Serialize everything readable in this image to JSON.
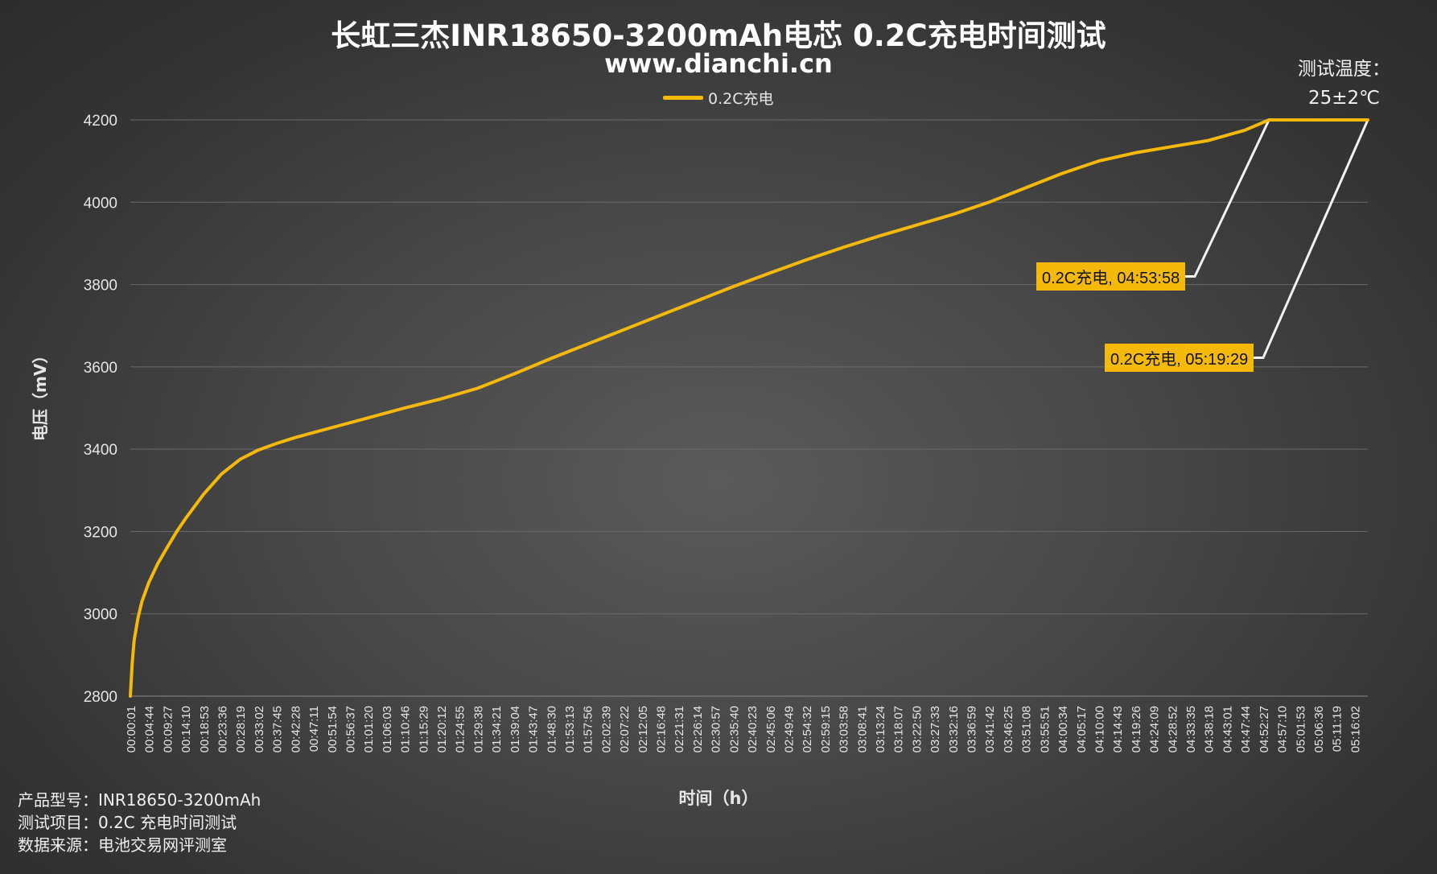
{
  "page": {
    "title": "长虹三杰INR18650-3200mAh电芯 0.2C充电时间测试",
    "subtitle": "www.dianchi.cn",
    "temperature_label": "测试温度：",
    "temperature_value": "25±2℃",
    "footer": {
      "model": "产品型号：INR18650-3200mAh",
      "test_item": "测试项目：0.2C 充电时间测试",
      "source": "数据来源：电池交易网评测室"
    }
  },
  "chart_data": {
    "type": "line",
    "title": "长虹三杰INR18650-3200mAh电芯 0.2C充电时间测试",
    "subtitle": "www.dianchi.cn",
    "xlabel": "时间（h）",
    "ylabel": "电压（mV）",
    "ylim": [
      2800,
      4200
    ],
    "yticks": [
      2800,
      3000,
      3200,
      3400,
      3600,
      3800,
      4000,
      4200
    ],
    "grid": true,
    "legend_position": "top-center",
    "series_color": "#f5b90a",
    "xtick_labels": [
      "00:00:01",
      "00:04:44",
      "00:09:27",
      "00:14:10",
      "00:18:53",
      "00:23:36",
      "00:28:19",
      "00:33:02",
      "00:37:45",
      "00:42:28",
      "00:47:11",
      "00:51:54",
      "00:56:37",
      "01:01:20",
      "01:06:03",
      "01:10:46",
      "01:15:29",
      "01:20:12",
      "01:24:55",
      "01:29:38",
      "01:34:21",
      "01:39:04",
      "01:43:47",
      "01:48:30",
      "01:53:13",
      "01:57:56",
      "02:02:39",
      "02:07:22",
      "02:12:05",
      "02:16:48",
      "02:21:31",
      "02:26:14",
      "02:30:57",
      "02:35:40",
      "02:40:23",
      "02:45:06",
      "02:49:49",
      "02:54:32",
      "02:59:15",
      "03:03:58",
      "03:08:41",
      "03:13:24",
      "03:18:07",
      "03:22:50",
      "03:27:33",
      "03:32:16",
      "03:36:59",
      "03:41:42",
      "03:46:25",
      "03:51:08",
      "03:55:51",
      "04:00:34",
      "04:05:17",
      "04:10:00",
      "04:14:43",
      "04:19:26",
      "04:24:09",
      "04:28:52",
      "04:33:35",
      "04:38:18",
      "04:43:01",
      "04:47:44",
      "04:52:27",
      "04:57:10",
      "05:01:53",
      "05:06:36",
      "05:11:19",
      "05:16:02"
    ],
    "series": [
      {
        "name": "0.2C充电",
        "points": [
          [
            "00:00:01",
            2800
          ],
          [
            "00:00:30",
            2880
          ],
          [
            "00:01:00",
            2935
          ],
          [
            "00:02:00",
            2990
          ],
          [
            "00:03:00",
            3030
          ],
          [
            "00:04:44",
            3075
          ],
          [
            "00:07:00",
            3120
          ],
          [
            "00:09:27",
            3160
          ],
          [
            "00:12:00",
            3200
          ],
          [
            "00:14:10",
            3230
          ],
          [
            "00:18:53",
            3290
          ],
          [
            "00:23:36",
            3340
          ],
          [
            "00:28:19",
            3375
          ],
          [
            "00:33:02",
            3398
          ],
          [
            "00:37:45",
            3414
          ],
          [
            "00:42:28",
            3428
          ],
          [
            "00:51:54",
            3452
          ],
          [
            "01:01:20",
            3476
          ],
          [
            "01:10:46",
            3500
          ],
          [
            "01:20:12",
            3522
          ],
          [
            "01:29:38",
            3548
          ],
          [
            "01:39:04",
            3583
          ],
          [
            "01:48:30",
            3620
          ],
          [
            "01:57:56",
            3655
          ],
          [
            "02:07:22",
            3690
          ],
          [
            "02:16:48",
            3725
          ],
          [
            "02:26:14",
            3760
          ],
          [
            "02:35:40",
            3795
          ],
          [
            "02:45:06",
            3828
          ],
          [
            "02:54:32",
            3860
          ],
          [
            "03:03:58",
            3890
          ],
          [
            "03:13:24",
            3918
          ],
          [
            "03:22:50",
            3944
          ],
          [
            "03:32:16",
            3970
          ],
          [
            "03:41:42",
            4000
          ],
          [
            "03:51:08",
            4035
          ],
          [
            "04:00:34",
            4070
          ],
          [
            "04:10:00",
            4100
          ],
          [
            "04:19:26",
            4120
          ],
          [
            "04:28:52",
            4135
          ],
          [
            "04:38:18",
            4150
          ],
          [
            "04:47:44",
            4175
          ],
          [
            "04:53:58",
            4200
          ],
          [
            "05:19:29",
            4200
          ]
        ]
      }
    ],
    "annotations": [
      {
        "label": "0.2C充电, 04:53:58",
        "x": "04:53:58",
        "y": 4200
      },
      {
        "label": "0.2C充电, 05:19:29",
        "x": "05:19:29",
        "y": 4200
      }
    ]
  }
}
